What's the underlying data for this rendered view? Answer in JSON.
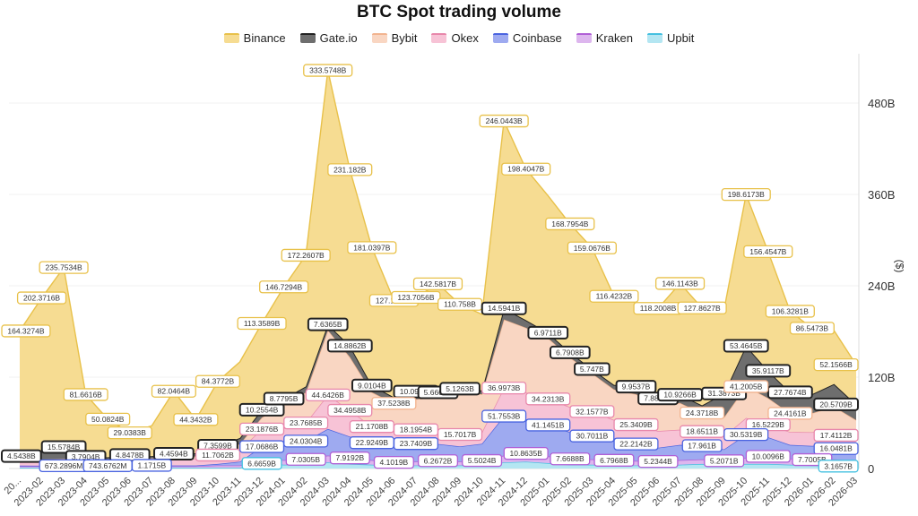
{
  "chart_data": {
    "type": "area",
    "stacked": true,
    "title": "BTC Spot trading volume",
    "ylabel": "($)",
    "ylim": [
      0,
      540
    ],
    "y_ticks": [
      "0",
      "120B",
      "240B",
      "360B",
      "480B"
    ],
    "y_tick_values": [
      0,
      120,
      240,
      360,
      480
    ],
    "legend_position": "top-center",
    "grid": true,
    "categories": [
      "20...",
      "2023-02",
      "2023-03",
      "2023-04",
      "2023-05",
      "2023-06",
      "2023-07",
      "2023-08",
      "2023-09",
      "2023-10",
      "2023-11",
      "2023-12",
      "2024-01",
      "2024-02",
      "2024-03",
      "2024-04",
      "2024-05",
      "2024-06",
      "2024-07",
      "2024-08",
      "2024-09",
      "2024-10",
      "2024-11",
      "2024-12",
      "2025-01",
      "2025-02",
      "2025-03",
      "2025-04",
      "2025-05",
      "2025-06",
      "2025-07",
      "2025-08",
      "2025-09",
      "2025-10",
      "2025-11",
      "2025-12",
      "2026-01",
      "2026-02",
      "2026-03"
    ],
    "series": [
      {
        "name": "Upbit",
        "fill": "#b4e6f2",
        "stroke": "#45c0e0",
        "values": [
          1,
          1,
          1,
          1,
          1,
          1,
          1,
          1,
          1,
          1,
          1,
          6.67,
          5,
          5,
          8,
          6,
          5,
          4,
          4,
          4,
          4,
          5,
          8,
          9,
          7,
          5,
          5,
          4,
          4,
          4,
          5,
          6,
          5,
          6,
          6,
          5,
          4,
          4,
          3.17
        ]
      },
      {
        "name": "Kraken",
        "fill": "#ddb6ee",
        "stroke": "#b05fd6",
        "values": [
          2,
          2,
          2,
          2,
          2,
          2,
          2,
          2,
          2,
          3,
          3,
          5,
          6,
          7.03,
          9,
          7.92,
          6,
          4.1,
          5,
          6.27,
          5,
          5.5,
          9,
          10.86,
          9,
          7.67,
          7,
          6.8,
          6,
          5.23,
          6,
          6,
          5.21,
          8,
          10.01,
          8,
          7.7,
          8,
          7
        ]
      },
      {
        "name": "Coinbase",
        "fill": "#9eaaf0",
        "stroke": "#4a64e0",
        "values": [
          0.8,
          0.7,
          0.67,
          0.7,
          0.74,
          1,
          1.17,
          1,
          1,
          2,
          5,
          17.07,
          20,
          24.03,
          35,
          28,
          22.92,
          20,
          23.74,
          22,
          20,
          22,
          51.76,
          45,
          41.15,
          35,
          30.7,
          25,
          22.21,
          18,
          20,
          17.96,
          15,
          30.53,
          25,
          18,
          18,
          20,
          16.05
        ]
      },
      {
        "name": "Okex",
        "fill": "#f7c3d6",
        "stroke": "#e887ab",
        "values": [
          5,
          5,
          5,
          5,
          5,
          5,
          6,
          8,
          9,
          11.71,
          15,
          23.19,
          22,
          23.77,
          44.64,
          34.5,
          21.17,
          20,
          18.2,
          17,
          15.7,
          15,
          37,
          35,
          34.23,
          33,
          32.16,
          28,
          25.34,
          22,
          20,
          18.65,
          17,
          22,
          16.52,
          17,
          18,
          19,
          17.41
        ]
      },
      {
        "name": "Bybit",
        "fill": "#f9d6c2",
        "stroke": "#f2b48f",
        "values": [
          3,
          3,
          4,
          3,
          3,
          4,
          3,
          3,
          3,
          5,
          8,
          15,
          30,
          40,
          85,
          70,
          45,
          37.52,
          40,
          45,
          55,
          50,
          90,
          85,
          80,
          65,
          50,
          40,
          40,
          35,
          35,
          24.37,
          25,
          41.2,
          35,
          24.42,
          25,
          30,
          20
        ]
      },
      {
        "name": "Gate.io",
        "fill": "#6e6e6e",
        "stroke": "#222222",
        "values": [
          4.54,
          10,
          15.58,
          3.79,
          3,
          4.85,
          3,
          4.46,
          4,
          7.36,
          8,
          10.26,
          8.78,
          8,
          7.64,
          14.89,
          9.01,
          8,
          10.09,
          5.66,
          5.13,
          5,
          14.59,
          10,
          6.97,
          6.79,
          5.75,
          6,
          9.95,
          7.89,
          10.93,
          10,
          31.39,
          53.46,
          35.91,
          27.77,
          25,
          30,
          20.57
        ]
      },
      {
        "name": "Binance",
        "fill": "#f6dc92",
        "stroke": "#e8c14a",
        "values": [
          164.33,
          202.37,
          235.75,
          81.66,
          50.08,
          29.04,
          40,
          82.05,
          44.34,
          84.38,
          100,
          113.36,
          146.73,
          172.26,
          333.57,
          231.18,
          181.04,
          127.14,
          123.71,
          142.58,
          110.76,
          100,
          246.04,
          198.4,
          180,
          168.8,
          159.07,
          116.42,
          110,
          118.2,
          146.11,
          127.86,
          110,
          198.62,
          156.45,
          106.33,
          86.55,
          70,
          52.16
        ]
      }
    ],
    "legend_order": [
      "Binance",
      "Gate.io",
      "Bybit",
      "Okex",
      "Coinbase",
      "Kraken",
      "Upbit"
    ],
    "annotations": [
      {
        "series": "Binance",
        "month": 0,
        "text": "164.3274B"
      },
      {
        "series": "Binance",
        "month": 1,
        "text": "202.3716B"
      },
      {
        "series": "Binance",
        "month": 2,
        "text": "235.7534B"
      },
      {
        "series": "Binance",
        "month": 3,
        "text": "81.6616B"
      },
      {
        "series": "Binance",
        "month": 4,
        "text": "50.0824B"
      },
      {
        "series": "Binance",
        "month": 5,
        "text": "29.0383B"
      },
      {
        "series": "Binance",
        "month": 7,
        "text": "82.0464B"
      },
      {
        "series": "Binance",
        "month": 8,
        "text": "44.3432B"
      },
      {
        "series": "Binance",
        "month": 9,
        "text": "84.3772B"
      },
      {
        "series": "Binance",
        "month": 11,
        "text": "113.3589B"
      },
      {
        "series": "Binance",
        "month": 12,
        "text": "146.7294B"
      },
      {
        "series": "Binance",
        "month": 13,
        "text": "172.2607B"
      },
      {
        "series": "Binance",
        "month": 14,
        "text": "333.5748B"
      },
      {
        "series": "Binance",
        "month": 15,
        "text": "231.182B"
      },
      {
        "series": "Binance",
        "month": 16,
        "text": "181.0397B"
      },
      {
        "series": "Binance",
        "month": 17,
        "text": "127.1417B"
      },
      {
        "series": "Binance",
        "month": 18,
        "text": "123.7056B"
      },
      {
        "series": "Binance",
        "month": 19,
        "text": "142.5817B"
      },
      {
        "series": "Binance",
        "month": 20,
        "text": "110.758B"
      },
      {
        "series": "Binance",
        "month": 22,
        "text": "246.0443B"
      },
      {
        "series": "Binance",
        "month": 23,
        "text": "198.4047B"
      },
      {
        "series": "Binance",
        "month": 25,
        "text": "168.7954B"
      },
      {
        "series": "Binance",
        "month": 26,
        "text": "159.0676B"
      },
      {
        "series": "Binance",
        "month": 27,
        "text": "116.4232B"
      },
      {
        "series": "Binance",
        "month": 29,
        "text": "118.2008B"
      },
      {
        "series": "Binance",
        "month": 30,
        "text": "146.1143B"
      },
      {
        "series": "Binance",
        "month": 31,
        "text": "127.8627B"
      },
      {
        "series": "Binance",
        "month": 33,
        "text": "198.6173B"
      },
      {
        "series": "Binance",
        "month": 34,
        "text": "156.4547B"
      },
      {
        "series": "Binance",
        "month": 35,
        "text": "106.3281B"
      },
      {
        "series": "Binance",
        "month": 36,
        "text": "86.5473B"
      },
      {
        "series": "Binance",
        "month": 38,
        "text": "52.1566B"
      },
      {
        "series": "Gate.io",
        "month": 0,
        "text": "4.5438B"
      },
      {
        "series": "Gate.io",
        "month": 2,
        "text": "15.5784B"
      },
      {
        "series": "Gate.io",
        "month": 3,
        "text": "3.7904B"
      },
      {
        "series": "Gate.io",
        "month": 5,
        "text": "4.8478B"
      },
      {
        "series": "Gate.io",
        "month": 7,
        "text": "4.4594B"
      },
      {
        "series": "Gate.io",
        "month": 9,
        "text": "7.3599B"
      },
      {
        "series": "Gate.io",
        "month": 11,
        "text": "10.2554B"
      },
      {
        "series": "Gate.io",
        "month": 12,
        "text": "8.7795B"
      },
      {
        "series": "Gate.io",
        "month": 14,
        "text": "7.6365B"
      },
      {
        "series": "Gate.io",
        "month": 15,
        "text": "14.8862B"
      },
      {
        "series": "Gate.io",
        "month": 16,
        "text": "9.0104B"
      },
      {
        "series": "Gate.io",
        "month": 18,
        "text": "10.0918B"
      },
      {
        "series": "Gate.io",
        "month": 19,
        "text": "5.6604B"
      },
      {
        "series": "Gate.io",
        "month": 20,
        "text": "5.1263B"
      },
      {
        "series": "Gate.io",
        "month": 22,
        "text": "14.5941B"
      },
      {
        "series": "Gate.io",
        "month": 24,
        "text": "6.9711B"
      },
      {
        "series": "Gate.io",
        "month": 25,
        "text": "6.7908B"
      },
      {
        "series": "Gate.io",
        "month": 26,
        "text": "5.747B"
      },
      {
        "series": "Gate.io",
        "month": 28,
        "text": "9.9537B"
      },
      {
        "series": "Gate.io",
        "month": 29,
        "text": "7.8872B"
      },
      {
        "series": "Gate.io",
        "month": 30,
        "text": "10.9266B"
      },
      {
        "series": "Gate.io",
        "month": 32,
        "text": "31.3873B"
      },
      {
        "series": "Gate.io",
        "month": 33,
        "text": "53.4645B"
      },
      {
        "series": "Gate.io",
        "month": 34,
        "text": "35.9117B"
      },
      {
        "series": "Gate.io",
        "month": 35,
        "text": "27.7674B"
      },
      {
        "series": "Gate.io",
        "month": 38,
        "text": "20.5709B"
      },
      {
        "series": "Bybit",
        "month": 17,
        "text": "37.5238B"
      },
      {
        "series": "Bybit",
        "month": 31,
        "text": "24.3718B"
      },
      {
        "series": "Bybit",
        "month": 33,
        "text": "41.2005B"
      },
      {
        "series": "Bybit",
        "month": 35,
        "text": "24.4161B"
      },
      {
        "series": "Okex",
        "month": 9,
        "text": "11.7062B"
      },
      {
        "series": "Okex",
        "month": 11,
        "text": "23.1876B"
      },
      {
        "series": "Okex",
        "month": 13,
        "text": "23.7685B"
      },
      {
        "series": "Okex",
        "month": 14,
        "text": "44.6426B"
      },
      {
        "series": "Okex",
        "month": 15,
        "text": "34.4958B"
      },
      {
        "series": "Okex",
        "month": 16,
        "text": "21.1708B"
      },
      {
        "series": "Okex",
        "month": 18,
        "text": "18.1954B"
      },
      {
        "series": "Okex",
        "month": 20,
        "text": "15.7017B"
      },
      {
        "series": "Okex",
        "month": 22,
        "text": "36.9973B"
      },
      {
        "series": "Okex",
        "month": 24,
        "text": "34.2313B"
      },
      {
        "series": "Okex",
        "month": 26,
        "text": "32.1577B"
      },
      {
        "series": "Okex",
        "month": 28,
        "text": "25.3409B"
      },
      {
        "series": "Okex",
        "month": 31,
        "text": "18.6511B"
      },
      {
        "series": "Okex",
        "month": 34,
        "text": "16.5229B"
      },
      {
        "series": "Okex",
        "month": 38,
        "text": "17.4112B"
      },
      {
        "series": "Coinbase",
        "month": 2,
        "text": "673.2896M"
      },
      {
        "series": "Coinbase",
        "month": 4,
        "text": "743.6762M"
      },
      {
        "series": "Coinbase",
        "month": 6,
        "text": "1.1715B"
      },
      {
        "series": "Coinbase",
        "month": 11,
        "text": "17.0686B"
      },
      {
        "series": "Coinbase",
        "month": 13,
        "text": "24.0304B"
      },
      {
        "series": "Coinbase",
        "month": 16,
        "text": "22.9249B"
      },
      {
        "series": "Coinbase",
        "month": 18,
        "text": "23.7409B"
      },
      {
        "series": "Coinbase",
        "month": 22,
        "text": "51.7553B"
      },
      {
        "series": "Coinbase",
        "month": 24,
        "text": "41.1451B"
      },
      {
        "series": "Coinbase",
        "month": 26,
        "text": "30.7011B"
      },
      {
        "series": "Coinbase",
        "month": 28,
        "text": "22.2142B"
      },
      {
        "series": "Coinbase",
        "month": 31,
        "text": "17.961B"
      },
      {
        "series": "Coinbase",
        "month": 33,
        "text": "30.5319B"
      },
      {
        "series": "Coinbase",
        "month": 38,
        "text": "16.0481B"
      },
      {
        "series": "Kraken",
        "month": 13,
        "text": "7.0305B"
      },
      {
        "series": "Kraken",
        "month": 15,
        "text": "7.9192B"
      },
      {
        "series": "Kraken",
        "month": 17,
        "text": "4.1019B"
      },
      {
        "series": "Kraken",
        "month": 19,
        "text": "6.2672B"
      },
      {
        "series": "Kraken",
        "month": 21,
        "text": "5.5024B"
      },
      {
        "series": "Kraken",
        "month": 23,
        "text": "10.8635B"
      },
      {
        "series": "Kraken",
        "month": 25,
        "text": "7.6688B"
      },
      {
        "series": "Kraken",
        "month": 27,
        "text": "6.7968B"
      },
      {
        "series": "Kraken",
        "month": 29,
        "text": "5.2344B"
      },
      {
        "series": "Kraken",
        "month": 32,
        "text": "5.2071B"
      },
      {
        "series": "Kraken",
        "month": 34,
        "text": "10.0096B"
      },
      {
        "series": "Kraken",
        "month": 36,
        "text": "7.7005B"
      },
      {
        "series": "Upbit",
        "month": 11,
        "text": "6.6659B"
      },
      {
        "series": "Upbit",
        "month": 38,
        "text": "3.1657B"
      }
    ]
  }
}
